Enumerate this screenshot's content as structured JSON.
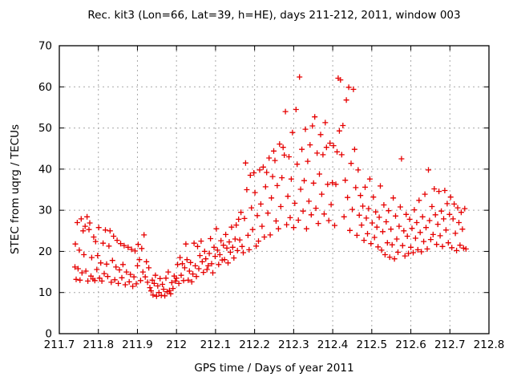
{
  "chart_data": {
    "type": "scatter",
    "title": "Rec. kit3 (Lon=66, Lat=39, h=HE), days 211-212, 2011, window 003",
    "xlabel": "GPS time / Days of year 2011",
    "ylabel": "STEC from uqrg / TECUs",
    "xlim": [
      211.7,
      212.8
    ],
    "ylim": [
      0,
      70
    ],
    "grid": true,
    "legend": "none",
    "marker": "plus",
    "marker_color": "#e60000",
    "axis_color": "#000000",
    "grid_color": "#a8a8a8",
    "xticks": [
      {
        "v": 211.7,
        "label": "211.7"
      },
      {
        "v": 211.8,
        "label": "211.8"
      },
      {
        "v": 211.9,
        "label": "211.9"
      },
      {
        "v": 212.0,
        "label": "212"
      },
      {
        "v": 212.1,
        "label": "212.1"
      },
      {
        "v": 212.2,
        "label": "212.2"
      },
      {
        "v": 212.3,
        "label": "212.3"
      },
      {
        "v": 212.4,
        "label": "212.4"
      },
      {
        "v": 212.5,
        "label": "212.5"
      },
      {
        "v": 212.6,
        "label": "212.6"
      },
      {
        "v": 212.7,
        "label": "212.7"
      },
      {
        "v": 212.8,
        "label": "212.8"
      }
    ],
    "yticks": [
      {
        "v": 0,
        "label": "0"
      },
      {
        "v": 10,
        "label": "10"
      },
      {
        "v": 20,
        "label": "20"
      },
      {
        "v": 30,
        "label": "30"
      },
      {
        "v": 40,
        "label": "40"
      },
      {
        "v": 50,
        "label": "50"
      },
      {
        "v": 60,
        "label": "60"
      },
      {
        "v": 70,
        "label": "70"
      }
    ],
    "points": [
      [
        211.74,
        16.2
      ],
      [
        211.741,
        21.8
      ],
      [
        211.743,
        13.2
      ],
      [
        211.746,
        27.0
      ],
      [
        211.748,
        15.8
      ],
      [
        211.751,
        20.3
      ],
      [
        211.753,
        13.0
      ],
      [
        211.756,
        27.9
      ],
      [
        211.758,
        14.8
      ],
      [
        211.761,
        25.0
      ],
      [
        211.763,
        19.2
      ],
      [
        211.766,
        26.1
      ],
      [
        211.768,
        15.2
      ],
      [
        211.771,
        28.4
      ],
      [
        211.773,
        12.8
      ],
      [
        211.776,
        25.3
      ],
      [
        211.778,
        26.9
      ],
      [
        211.781,
        14.0
      ],
      [
        211.783,
        18.5
      ],
      [
        211.786,
        13.3
      ],
      [
        211.788,
        23.5
      ],
      [
        211.791,
        12.9
      ],
      [
        211.793,
        22.4
      ],
      [
        211.796,
        15.6
      ],
      [
        211.798,
        19.0
      ],
      [
        211.801,
        25.8
      ],
      [
        211.803,
        13.5
      ],
      [
        211.806,
        17.2
      ],
      [
        211.809,
        12.8
      ],
      [
        211.812,
        22.0
      ],
      [
        211.815,
        14.6
      ],
      [
        211.818,
        25.2
      ],
      [
        211.821,
        16.9
      ],
      [
        211.824,
        13.9
      ],
      [
        211.827,
        21.3
      ],
      [
        211.83,
        25.0
      ],
      [
        211.833,
        12.5
      ],
      [
        211.836,
        17.8
      ],
      [
        211.839,
        23.7
      ],
      [
        211.842,
        13.1
      ],
      [
        211.845,
        16.2
      ],
      [
        211.848,
        22.7
      ],
      [
        211.851,
        12.2
      ],
      [
        211.854,
        15.5
      ],
      [
        211.857,
        21.9
      ],
      [
        211.86,
        13.6
      ],
      [
        211.863,
        16.8
      ],
      [
        211.866,
        21.4
      ],
      [
        211.869,
        11.9
      ],
      [
        211.872,
        15.0
      ],
      [
        211.876,
        21.0
      ],
      [
        211.879,
        12.6
      ],
      [
        211.882,
        14.4
      ],
      [
        211.885,
        20.5
      ],
      [
        211.888,
        11.5
      ],
      [
        211.891,
        13.8
      ],
      [
        211.894,
        20.1
      ],
      [
        211.897,
        12.1
      ],
      [
        211.9,
        16.5
      ],
      [
        211.902,
        21.7
      ],
      [
        211.905,
        18.0
      ],
      [
        211.908,
        12.9
      ],
      [
        211.911,
        20.7
      ],
      [
        211.914,
        15.0
      ],
      [
        211.917,
        24.0
      ],
      [
        211.92,
        13.8
      ],
      [
        211.923,
        17.5
      ],
      [
        211.926,
        12.5
      ],
      [
        211.929,
        16.0
      ],
      [
        211.932,
        11.2
      ],
      [
        211.935,
        10.4
      ],
      [
        211.938,
        13.0
      ],
      [
        211.94,
        9.4
      ],
      [
        211.943,
        12.2
      ],
      [
        211.946,
        14.2
      ],
      [
        211.949,
        9.1
      ],
      [
        211.952,
        11.6
      ],
      [
        211.955,
        10.0
      ],
      [
        211.958,
        13.4
      ],
      [
        211.961,
        9.3
      ],
      [
        211.964,
        12.0
      ],
      [
        211.967,
        10.8
      ],
      [
        211.97,
        9.2
      ],
      [
        211.973,
        13.5
      ],
      [
        211.976,
        10.2
      ],
      [
        211.979,
        15.0
      ],
      [
        211.982,
        10.5
      ],
      [
        211.985,
        9.7
      ],
      [
        211.988,
        12.4
      ],
      [
        211.991,
        11.0
      ],
      [
        211.994,
        14.0
      ],
      [
        211.997,
        12.8
      ],
      [
        212.0,
        13.5
      ],
      [
        212.003,
        16.8
      ],
      [
        212.006,
        12.2
      ],
      [
        212.009,
        18.5
      ],
      [
        212.012,
        14.2
      ],
      [
        212.015,
        17.0
      ],
      [
        212.018,
        12.9
      ],
      [
        212.021,
        16.0
      ],
      [
        212.024,
        21.8
      ],
      [
        212.027,
        18.0
      ],
      [
        212.03,
        13.0
      ],
      [
        212.033,
        15.2
      ],
      [
        212.036,
        17.3
      ],
      [
        212.039,
        12.6
      ],
      [
        212.042,
        14.5
      ],
      [
        212.045,
        22.0
      ],
      [
        212.048,
        16.5
      ],
      [
        212.051,
        13.9
      ],
      [
        212.054,
        21.2
      ],
      [
        212.057,
        15.8
      ],
      [
        212.06,
        19.0
      ],
      [
        212.063,
        22.5
      ],
      [
        212.066,
        17.5
      ],
      [
        212.069,
        14.9
      ],
      [
        212.072,
        20.0
      ],
      [
        212.075,
        18.2
      ],
      [
        212.078,
        15.6
      ],
      [
        212.081,
        16.5
      ],
      [
        212.084,
        19.5
      ],
      [
        212.087,
        23.1
      ],
      [
        212.09,
        17.0
      ],
      [
        212.093,
        14.8
      ],
      [
        212.096,
        21.0
      ],
      [
        212.099,
        18.8
      ],
      [
        212.102,
        25.5
      ],
      [
        212.105,
        20.3
      ],
      [
        212.108,
        16.8
      ],
      [
        212.111,
        19.2
      ],
      [
        212.114,
        22.6
      ],
      [
        212.117,
        17.9
      ],
      [
        212.12,
        21.5
      ],
      [
        212.123,
        18.0
      ],
      [
        212.126,
        24.1
      ],
      [
        212.129,
        20.8
      ],
      [
        212.132,
        17.2
      ],
      [
        212.135,
        22.3
      ],
      [
        212.138,
        19.8
      ],
      [
        212.141,
        25.9
      ],
      [
        212.144,
        21.0
      ],
      [
        212.147,
        18.4
      ],
      [
        212.15,
        23.0
      ],
      [
        212.153,
        26.4
      ],
      [
        212.156,
        20.2
      ],
      [
        212.159,
        27.8
      ],
      [
        212.162,
        22.8
      ],
      [
        212.165,
        29.5
      ],
      [
        212.168,
        21.2
      ],
      [
        212.171,
        19.7
      ],
      [
        212.174,
        28.0
      ],
      [
        212.177,
        41.5
      ],
      [
        212.18,
        35.0
      ],
      [
        212.183,
        23.9
      ],
      [
        212.186,
        20.4
      ],
      [
        212.189,
        38.5
      ],
      [
        212.192,
        30.6
      ],
      [
        212.195,
        25.3
      ],
      [
        212.198,
        39.1
      ],
      [
        212.201,
        34.3
      ],
      [
        212.204,
        21.3
      ],
      [
        212.207,
        28.7
      ],
      [
        212.21,
        22.5
      ],
      [
        212.213,
        39.8
      ],
      [
        212.216,
        31.5
      ],
      [
        212.219,
        26.1
      ],
      [
        212.222,
        40.5
      ],
      [
        212.225,
        23.5
      ],
      [
        212.228,
        35.7
      ],
      [
        212.231,
        39.2
      ],
      [
        212.234,
        29.3
      ],
      [
        212.237,
        42.7
      ],
      [
        212.24,
        24.0
      ],
      [
        212.243,
        33.0
      ],
      [
        212.246,
        38.2
      ],
      [
        212.249,
        44.4
      ],
      [
        212.252,
        42.1
      ],
      [
        212.255,
        27.4
      ],
      [
        212.258,
        36.0
      ],
      [
        212.261,
        25.5
      ],
      [
        212.264,
        46.1
      ],
      [
        212.267,
        30.9
      ],
      [
        212.27,
        37.9
      ],
      [
        212.273,
        45.3
      ],
      [
        212.276,
        43.4
      ],
      [
        212.279,
        54.0
      ],
      [
        212.282,
        26.5
      ],
      [
        212.285,
        33.4
      ],
      [
        212.288,
        43.0
      ],
      [
        212.291,
        28.2
      ],
      [
        212.294,
        37.6
      ],
      [
        212.297,
        48.9
      ],
      [
        212.3,
        25.8
      ],
      [
        212.303,
        31.7
      ],
      [
        212.306,
        54.5
      ],
      [
        212.309,
        41.2
      ],
      [
        212.312,
        27.6
      ],
      [
        212.315,
        62.4
      ],
      [
        212.318,
        35.1
      ],
      [
        212.321,
        44.8
      ],
      [
        212.324,
        29.8
      ],
      [
        212.327,
        37.2
      ],
      [
        212.33,
        49.7
      ],
      [
        212.333,
        25.5
      ],
      [
        212.336,
        41.9
      ],
      [
        212.339,
        32.2
      ],
      [
        212.342,
        45.9
      ],
      [
        212.345,
        28.9
      ],
      [
        212.348,
        50.5
      ],
      [
        212.351,
        36.6
      ],
      [
        212.354,
        52.7
      ],
      [
        212.357,
        30.5
      ],
      [
        212.36,
        43.9
      ],
      [
        212.363,
        26.8
      ],
      [
        212.366,
        38.8
      ],
      [
        212.369,
        48.4
      ],
      [
        212.372,
        33.9
      ],
      [
        212.375,
        43.5
      ],
      [
        212.378,
        29.1
      ],
      [
        212.381,
        51.3
      ],
      [
        212.384,
        45.3
      ],
      [
        212.387,
        36.3
      ],
      [
        212.39,
        27.5
      ],
      [
        212.393,
        46.3
      ],
      [
        212.396,
        31.4
      ],
      [
        212.399,
        36.7
      ],
      [
        212.402,
        45.7
      ],
      [
        212.405,
        26.3
      ],
      [
        212.408,
        36.3
      ],
      [
        212.411,
        44.2
      ],
      [
        212.414,
        62.1
      ],
      [
        212.417,
        49.3
      ],
      [
        212.42,
        61.7
      ],
      [
        212.423,
        43.5
      ],
      [
        212.426,
        50.6
      ],
      [
        212.429,
        28.4
      ],
      [
        212.432,
        37.3
      ],
      [
        212.435,
        56.8
      ],
      [
        212.438,
        33.1
      ],
      [
        212.441,
        59.9
      ],
      [
        212.444,
        25.1
      ],
      [
        212.447,
        41.4
      ],
      [
        212.45,
        30.2
      ],
      [
        212.453,
        59.4
      ],
      [
        212.456,
        44.8
      ],
      [
        212.459,
        35.5
      ],
      [
        212.462,
        23.9
      ],
      [
        212.465,
        39.8
      ],
      [
        212.468,
        28.8
      ],
      [
        212.471,
        33.6
      ],
      [
        212.474,
        26.4
      ],
      [
        212.477,
        31.0
      ],
      [
        212.48,
        22.7
      ],
      [
        212.483,
        35.6
      ],
      [
        212.486,
        28.1
      ],
      [
        212.489,
        24.3
      ],
      [
        212.492,
        30.4
      ],
      [
        212.495,
        37.6
      ],
      [
        212.498,
        21.9
      ],
      [
        212.501,
        26.9
      ],
      [
        212.504,
        33.2
      ],
      [
        212.507,
        23.4
      ],
      [
        212.51,
        29.6
      ],
      [
        212.513,
        25.9
      ],
      [
        212.516,
        21.1
      ],
      [
        212.519,
        28.3
      ],
      [
        212.522,
        35.9
      ],
      [
        212.525,
        20.3
      ],
      [
        212.528,
        24.8
      ],
      [
        212.531,
        31.3
      ],
      [
        212.534,
        19.2
      ],
      [
        212.537,
        27.2
      ],
      [
        212.54,
        22.1
      ],
      [
        212.543,
        29.9
      ],
      [
        212.546,
        18.6
      ],
      [
        212.549,
        25.4
      ],
      [
        212.552,
        21.6
      ],
      [
        212.555,
        33.0
      ],
      [
        212.558,
        18.2
      ],
      [
        212.561,
        28.6
      ],
      [
        212.564,
        23.0
      ],
      [
        212.567,
        19.8
      ],
      [
        212.57,
        26.1
      ],
      [
        212.573,
        30.8
      ],
      [
        212.576,
        42.5
      ],
      [
        212.579,
        21.4
      ],
      [
        212.582,
        25.0
      ],
      [
        212.585,
        18.9
      ],
      [
        212.588,
        29.0
      ],
      [
        212.591,
        23.7
      ],
      [
        212.594,
        19.5
      ],
      [
        212.597,
        27.8
      ],
      [
        212.6,
        21.0
      ],
      [
        212.603,
        25.6
      ],
      [
        212.606,
        19.7
      ],
      [
        212.609,
        30.1
      ],
      [
        212.612,
        23.2
      ],
      [
        212.615,
        27.0
      ],
      [
        212.618,
        20.4
      ],
      [
        212.621,
        32.4
      ],
      [
        212.624,
        24.6
      ],
      [
        212.627,
        19.9
      ],
      [
        212.63,
        28.4
      ],
      [
        212.633,
        22.4
      ],
      [
        212.636,
        33.9
      ],
      [
        212.639,
        25.8
      ],
      [
        212.642,
        20.6
      ],
      [
        212.645,
        39.8
      ],
      [
        212.648,
        27.5
      ],
      [
        212.651,
        22.9
      ],
      [
        212.654,
        30.9
      ],
      [
        212.657,
        24.1
      ],
      [
        212.66,
        35.2
      ],
      [
        212.663,
        28.9
      ],
      [
        212.666,
        21.7
      ],
      [
        212.669,
        26.6
      ],
      [
        212.672,
        34.6
      ],
      [
        212.675,
        23.8
      ],
      [
        212.678,
        29.8
      ],
      [
        212.681,
        21.2
      ],
      [
        212.684,
        27.9
      ],
      [
        212.687,
        34.8
      ],
      [
        212.69,
        25.2
      ],
      [
        212.693,
        31.6
      ],
      [
        212.696,
        22.1
      ],
      [
        212.699,
        29.0
      ],
      [
        212.702,
        33.2
      ],
      [
        212.705,
        20.9
      ],
      [
        212.708,
        27.9
      ],
      [
        212.711,
        31.5
      ],
      [
        212.714,
        24.4
      ],
      [
        212.717,
        20.2
      ],
      [
        212.72,
        30.6
      ],
      [
        212.723,
        27.0
      ],
      [
        212.726,
        21.5
      ],
      [
        212.729,
        29.5
      ],
      [
        212.732,
        25.4
      ],
      [
        212.735,
        20.8
      ],
      [
        212.738,
        30.4
      ],
      [
        212.741,
        20.6
      ]
    ]
  }
}
